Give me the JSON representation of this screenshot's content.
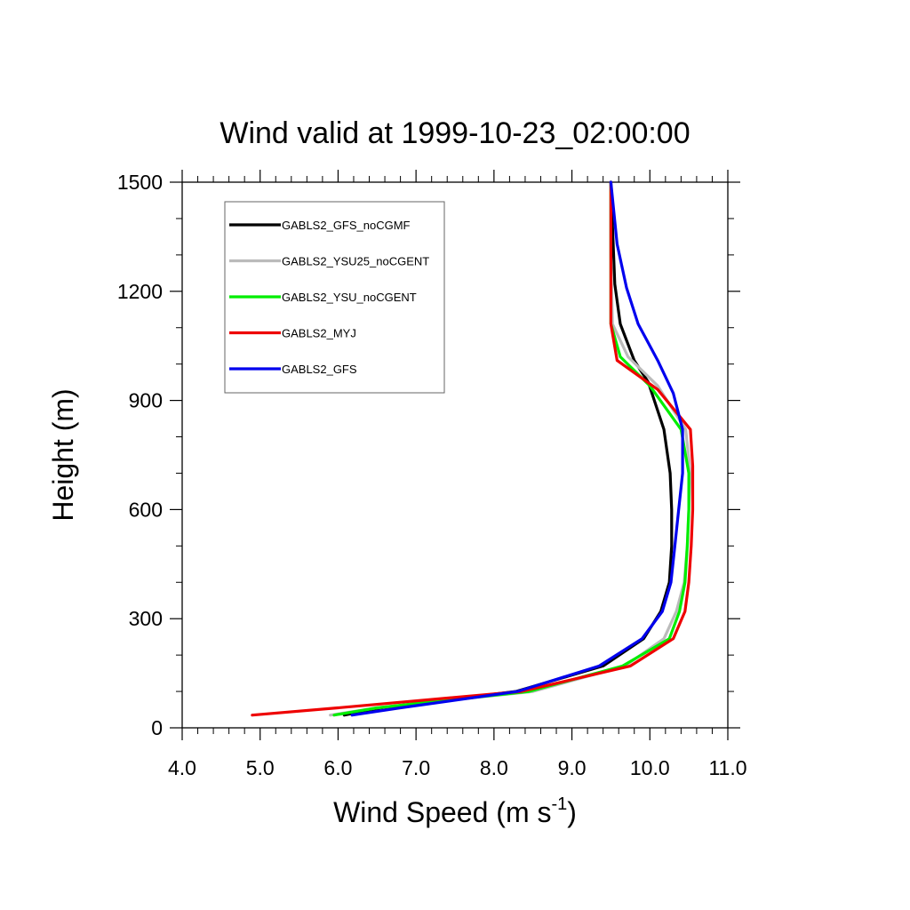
{
  "chart_data": {
    "type": "line",
    "title": "Wind valid at 1999-10-23_02:00:00",
    "xlabel": "Wind Speed (m s",
    "xlabel_sup": "-1",
    "xlabel_close": ")",
    "ylabel": "Height (m)",
    "xlim": [
      4.0,
      11.0
    ],
    "ylim": [
      0,
      1500
    ],
    "x_ticks": [
      "4.0",
      "5.0",
      "6.0",
      "7.0",
      "8.0",
      "9.0",
      "10.0",
      "11.0"
    ],
    "y_ticks": [
      "0",
      "300",
      "600",
      "900",
      "1200",
      "1500"
    ],
    "legend_position": "top-left",
    "grid": false,
    "series": [
      {
        "name": "GABLS2_GFS_noCGMF",
        "color": "#000000",
        "points": [
          [
            6.08,
            35
          ],
          [
            6.55,
            55
          ],
          [
            8.28,
            100
          ],
          [
            9.4,
            170
          ],
          [
            9.92,
            245
          ],
          [
            10.14,
            320
          ],
          [
            10.25,
            400
          ],
          [
            10.28,
            500
          ],
          [
            10.28,
            600
          ],
          [
            10.26,
            700
          ],
          [
            10.18,
            820
          ],
          [
            9.98,
            950
          ],
          [
            9.8,
            1010
          ],
          [
            9.62,
            1110
          ],
          [
            9.55,
            1220
          ],
          [
            9.52,
            1380
          ],
          [
            9.5,
            1500
          ]
        ]
      },
      {
        "name": "GABLS2_YSU25_noCGENT",
        "color": "#bbbbbb",
        "points": [
          [
            5.9,
            35
          ],
          [
            6.5,
            55
          ],
          [
            8.5,
            100
          ],
          [
            9.68,
            170
          ],
          [
            10.18,
            245
          ],
          [
            10.34,
            320
          ],
          [
            10.44,
            400
          ],
          [
            10.48,
            500
          ],
          [
            10.5,
            600
          ],
          [
            10.52,
            700
          ],
          [
            10.46,
            820
          ],
          [
            10.1,
            940
          ],
          [
            9.72,
            1020
          ],
          [
            9.52,
            1110
          ],
          [
            9.5,
            1300
          ],
          [
            9.5,
            1500
          ]
        ]
      },
      {
        "name": "GABLS2_YSU_noCGENT",
        "color": "#00ee00",
        "points": [
          [
            5.95,
            35
          ],
          [
            6.5,
            55
          ],
          [
            8.45,
            100
          ],
          [
            9.65,
            170
          ],
          [
            10.25,
            245
          ],
          [
            10.38,
            320
          ],
          [
            10.45,
            400
          ],
          [
            10.48,
            500
          ],
          [
            10.5,
            600
          ],
          [
            10.5,
            700
          ],
          [
            10.4,
            820
          ],
          [
            10.0,
            940
          ],
          [
            9.62,
            1020
          ],
          [
            9.5,
            1110
          ],
          [
            9.5,
            1300
          ],
          [
            9.5,
            1500
          ]
        ]
      },
      {
        "name": "GABLS2_MYJ",
        "color": "#ee0000",
        "points": [
          [
            4.9,
            35
          ],
          [
            6.0,
            55
          ],
          [
            8.35,
            100
          ],
          [
            9.75,
            170
          ],
          [
            10.3,
            245
          ],
          [
            10.45,
            320
          ],
          [
            10.5,
            400
          ],
          [
            10.53,
            500
          ],
          [
            10.55,
            600
          ],
          [
            10.55,
            720
          ],
          [
            10.52,
            820
          ],
          [
            10.1,
            930
          ],
          [
            9.58,
            1010
          ],
          [
            9.5,
            1110
          ],
          [
            9.5,
            1300
          ],
          [
            9.5,
            1500
          ]
        ]
      },
      {
        "name": "GABLS2_GFS",
        "color": "#0000ee",
        "points": [
          [
            6.18,
            35
          ],
          [
            6.8,
            55
          ],
          [
            8.3,
            100
          ],
          [
            9.35,
            170
          ],
          [
            9.9,
            245
          ],
          [
            10.16,
            320
          ],
          [
            10.27,
            400
          ],
          [
            10.32,
            500
          ],
          [
            10.37,
            600
          ],
          [
            10.42,
            700
          ],
          [
            10.42,
            820
          ],
          [
            10.3,
            920
          ],
          [
            10.1,
            1010
          ],
          [
            9.85,
            1110
          ],
          [
            9.7,
            1210
          ],
          [
            9.58,
            1330
          ],
          [
            9.5,
            1500
          ]
        ]
      }
    ]
  }
}
